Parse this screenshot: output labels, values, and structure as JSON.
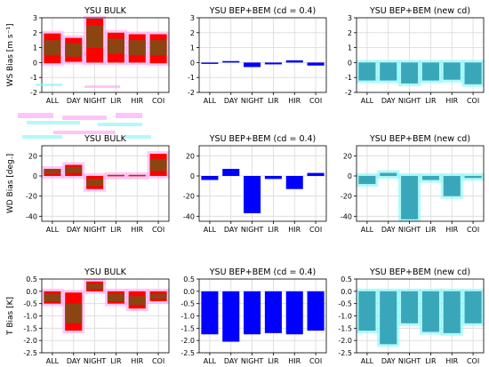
{
  "figure": {
    "colors": {
      "bulk": "#ff0000",
      "bulk_mid": "#8b4513",
      "bep": "#0000ff",
      "newcd": "#3aa6b9",
      "glow_pink": "#ff9ff3",
      "glow_cyan": "#7ff7f7"
    }
  },
  "chart_data": [
    {
      "type": "bar",
      "title": "YSU BULK",
      "ylabel": "WS Bias [m s$^{-1}$]",
      "ylabel_display": "WS Bias [m s⁻¹]",
      "categories": [
        "ALL",
        "DAY",
        "NIGHT",
        "LIR",
        "HIR",
        "COI"
      ],
      "ylim": [
        -2,
        3
      ],
      "yticks": [
        -2,
        -1,
        0,
        1,
        2,
        3
      ],
      "boxes": [
        {
          "low": -0.05,
          "mid_low": 0.5,
          "mid_high": 1.5,
          "high": 1.95
        },
        {
          "low": 0.05,
          "mid_low": 0.4,
          "mid_high": 1.3,
          "high": 1.65
        },
        {
          "low": 0.0,
          "mid_low": 1.0,
          "mid_high": 2.5,
          "high": 2.95
        },
        {
          "low": 0.0,
          "mid_low": 0.6,
          "mid_high": 1.6,
          "high": 2.0
        },
        {
          "low": 0.0,
          "mid_low": 0.5,
          "mid_high": 1.5,
          "high": 1.9
        },
        {
          "low": -0.05,
          "mid_low": 0.5,
          "mid_high": 1.5,
          "high": 1.9
        }
      ],
      "style": "bulk"
    },
    {
      "type": "bar",
      "title": "YSU BEP+BEM ($c_d$ = 0.4)",
      "title_display": "YSU BEP+BEM (cd = 0.4)",
      "categories": [
        "ALL",
        "DAY",
        "NIGHT",
        "LIR",
        "HIR",
        "COI"
      ],
      "ylim": [
        -2,
        3
      ],
      "yticks": [
        -2,
        -1,
        0,
        1,
        2,
        3
      ],
      "values": [
        -0.05,
        0.1,
        -0.3,
        -0.12,
        0.15,
        -0.2
      ],
      "style": "bep"
    },
    {
      "type": "bar",
      "title": "YSU BEP+BEM (new $c_d$)",
      "title_display": "YSU BEP+BEM (new cd)",
      "categories": [
        "ALL",
        "DAY",
        "NIGHT",
        "LIR",
        "HIR",
        "COI"
      ],
      "ylim": [
        -2,
        3
      ],
      "yticks": [
        -2,
        -1,
        0,
        1,
        2,
        3
      ],
      "values": [
        -1.2,
        -1.2,
        -1.4,
        -1.2,
        -1.15,
        -1.45
      ],
      "style": "newcd"
    },
    {
      "type": "bar",
      "title": "YSU BULK",
      "ylabel": "WD Bias [deg.]",
      "categories": [
        "ALL",
        "DAY",
        "NIGHT",
        "LIR",
        "HIR",
        "COI"
      ],
      "ylim": [
        -45,
        30
      ],
      "yticks": [
        -40,
        -20,
        0,
        20
      ],
      "boxes": [
        {
          "low": 0,
          "mid_low": 2,
          "mid_high": 6,
          "high": 7
        },
        {
          "low": 0,
          "mid_low": 3,
          "mid_high": 9,
          "high": 11
        },
        {
          "low": -13,
          "mid_low": -10,
          "mid_high": -3,
          "high": 0
        },
        {
          "low": 0,
          "mid_low": 0.5,
          "mid_high": 1,
          "high": 1
        },
        {
          "low": 0,
          "mid_low": 0.5,
          "mid_high": 1,
          "high": 1
        },
        {
          "low": 0,
          "mid_low": 5,
          "mid_high": 17,
          "high": 22
        }
      ],
      "style": "bulk"
    },
    {
      "type": "bar",
      "title": "YSU BEP+BEM ($c_d$ = 0.4)",
      "title_display": "YSU BEP+BEM (cd = 0.4)",
      "categories": [
        "ALL",
        "DAY",
        "NIGHT",
        "LIR",
        "HIR",
        "COI"
      ],
      "ylim": [
        -45,
        30
      ],
      "yticks": [
        -40,
        -20,
        0,
        20
      ],
      "values": [
        -4,
        7,
        -37,
        -3,
        -13,
        3
      ],
      "style": "bep"
    },
    {
      "type": "bar",
      "title": "YSU BEP+BEM (new $c_d$)",
      "title_display": "YSU BEP+BEM (new cd)",
      "categories": [
        "ALL",
        "DAY",
        "NIGHT",
        "LIR",
        "HIR",
        "COI"
      ],
      "ylim": [
        -45,
        30
      ],
      "yticks": [
        -40,
        -20,
        0,
        20
      ],
      "values": [
        -8,
        3,
        -43,
        -4,
        -20,
        -2
      ],
      "style": "newcd"
    },
    {
      "type": "bar",
      "title": "YSU BULK",
      "ylabel": "T Bias [K]",
      "categories": [
        "ALL",
        "DAY",
        "NIGHT",
        "LIR",
        "HIR",
        "COI"
      ],
      "ylim": [
        -2.5,
        0.5
      ],
      "yticks": [
        -2.5,
        -2.0,
        -1.5,
        -1.0,
        -0.5,
        0.0,
        0.5
      ],
      "boxes": [
        {
          "low": -0.5,
          "mid_low": -0.4,
          "mid_high": -0.1,
          "high": 0.0
        },
        {
          "low": -1.6,
          "mid_low": -1.3,
          "mid_high": -0.5,
          "high": -0.05
        },
        {
          "low": 0.0,
          "mid_low": 0.1,
          "mid_high": 0.3,
          "high": 0.4
        },
        {
          "low": -0.5,
          "mid_low": -0.4,
          "mid_high": -0.1,
          "high": 0.0
        },
        {
          "low": -0.7,
          "mid_low": -0.55,
          "mid_high": -0.2,
          "high": 0.0
        },
        {
          "low": -0.4,
          "mid_low": -0.3,
          "mid_high": -0.1,
          "high": 0.0
        }
      ],
      "style": "bulk"
    },
    {
      "type": "bar",
      "title": "YSU BEP+BEM ($c_d$ = 0.4)",
      "title_display": "YSU BEP+BEM (cd = 0.4)",
      "categories": [
        "ALL",
        "DAY",
        "NIGHT",
        "LIR",
        "HIR",
        "COI"
      ],
      "ylim": [
        -2.5,
        0.5
      ],
      "yticks": [
        -2.5,
        -2.0,
        -1.5,
        -1.0,
        -0.5,
        0.0,
        0.5
      ],
      "values": [
        -1.75,
        -2.05,
        -1.75,
        -1.7,
        -1.75,
        -1.6
      ],
      "style": "bep"
    },
    {
      "type": "bar",
      "title": "YSU BEP+BEM (new $c_d$)",
      "title_display": "YSU BEP+BEM (new cd)",
      "categories": [
        "ALL",
        "DAY",
        "NIGHT",
        "LIR",
        "HIR",
        "COI"
      ],
      "ylim": [
        -2.5,
        0.5
      ],
      "yticks": [
        -2.5,
        -2.0,
        -1.5,
        -1.0,
        -0.5,
        0.0,
        0.5
      ],
      "values": [
        -1.6,
        -2.15,
        -1.3,
        -1.65,
        -1.7,
        -1.3
      ],
      "style": "newcd"
    }
  ]
}
